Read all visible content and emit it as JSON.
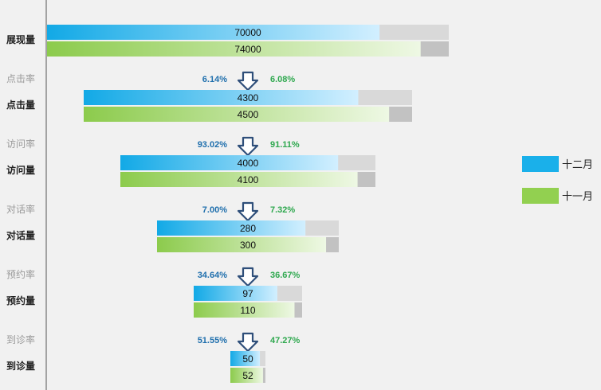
{
  "chart_data": {
    "type": "bar",
    "subtype": "funnel",
    "title": "",
    "categories": [
      "展现量",
      "点击量",
      "访问量",
      "对话量",
      "预约量",
      "到诊量"
    ],
    "series": [
      {
        "name": "十二月",
        "values": [
          70000,
          4300,
          4000,
          280,
          97,
          50
        ],
        "color": "#1ab0ea"
      },
      {
        "name": "十一月",
        "values": [
          74000,
          4500,
          4100,
          300,
          110,
          52
        ],
        "color": "#92d050"
      }
    ],
    "rate_labels": [
      "点击率",
      "访问率",
      "对话率",
      "预约率",
      "到诊率"
    ],
    "rates": {
      "十二月": [
        "6.14%",
        "93.02%",
        "7.00%",
        "34.64%",
        "51.55%"
      ],
      "十一月": [
        "6.08%",
        "91.11%",
        "7.32%",
        "36.67%",
        "47.27%"
      ]
    },
    "rate_colors": {
      "十二月": "#1f6fad",
      "十一月": "#2fa84f"
    },
    "legend": {
      "position": "right",
      "entries": [
        "十二月",
        "十一月"
      ]
    },
    "colors": {
      "background": "#f1f1f1",
      "track": "#d9d9d9",
      "arrow": "#2f4f7a",
      "axis": "#555555"
    }
  }
}
